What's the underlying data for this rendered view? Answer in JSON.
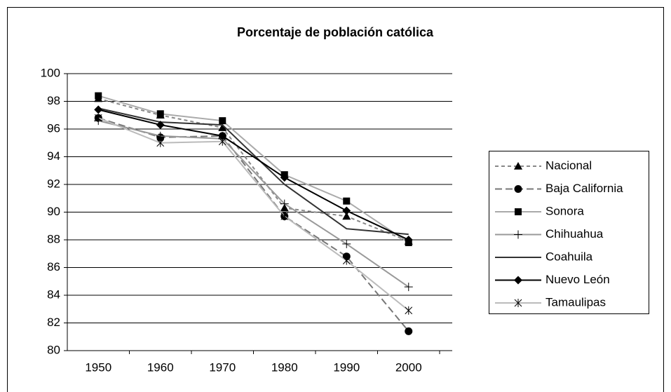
{
  "chart_data": {
    "type": "line",
    "title": "Porcentaje de población católica",
    "categories": [
      "1950",
      "1960",
      "1970",
      "1980",
      "1990",
      "2000"
    ],
    "ylim": [
      80,
      100
    ],
    "yticks": [
      80,
      82,
      84,
      86,
      88,
      90,
      92,
      94,
      96,
      98,
      100
    ],
    "grid": true,
    "legend": "right",
    "series": [
      {
        "name": "Nacional",
        "color": "#888888",
        "dash": "5,4",
        "marker": "triangle",
        "values": [
          98.2,
          97.0,
          96.1,
          90.3,
          89.7,
          87.9
        ]
      },
      {
        "name": "Baja California",
        "color": "#777777",
        "dash": "10,5",
        "marker": "circle",
        "values": [
          96.8,
          95.4,
          95.5,
          89.7,
          86.8,
          81.4
        ]
      },
      {
        "name": "Sonora",
        "color": "#aaaaaa",
        "dash": "none",
        "marker": "square",
        "values": [
          98.4,
          97.1,
          96.6,
          92.7,
          90.8,
          87.8
        ]
      },
      {
        "name": "Chihuahua",
        "color": "#999999",
        "dash": "none",
        "marker": "plus",
        "values": [
          96.6,
          95.5,
          95.3,
          90.6,
          87.7,
          84.6
        ]
      },
      {
        "name": "Coahuila",
        "color": "#333333",
        "dash": "none",
        "marker": "none",
        "values": [
          97.5,
          96.5,
          96.3,
          92.0,
          88.8,
          88.4
        ]
      },
      {
        "name": "Nuevo León",
        "color": "#000000",
        "dash": "none",
        "marker": "diamond",
        "values": [
          97.4,
          96.3,
          95.5,
          92.5,
          90.1,
          88.0
        ]
      },
      {
        "name": "Tamaulipas",
        "color": "#bbbbbb",
        "dash": "none",
        "marker": "asterisk",
        "values": [
          96.8,
          95.0,
          95.1,
          89.7,
          86.5,
          82.9
        ]
      }
    ]
  }
}
